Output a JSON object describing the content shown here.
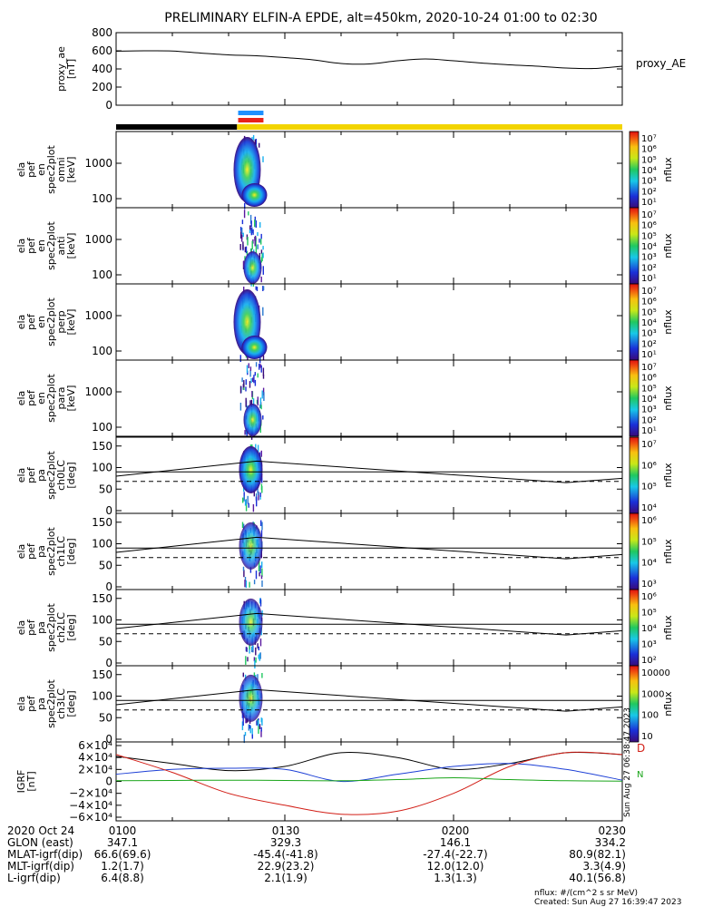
{
  "chart_data": {
    "type": "multi-panel time series and spectrogram stack",
    "title": "PRELIMINARY ELFIN-A EPDE, alt=450km, 2020-10-24 01:00 to 02:30",
    "time_axis": {
      "start": "2020-10-24 01:00",
      "end": "2020-10-24 02:30",
      "tick_labels": [
        "0100",
        "0130",
        "0200",
        "0230"
      ]
    },
    "proxy_ae": {
      "ylabel": [
        "proxy_ae",
        "[nT]"
      ],
      "series_label": "proxy_AE",
      "ylim": [
        0,
        800
      ],
      "yticks": [
        "0",
        "200",
        "400",
        "600",
        "800"
      ],
      "minutes": [
        0,
        5,
        10,
        15,
        20,
        25,
        30,
        35,
        40,
        45,
        50,
        55,
        60,
        65,
        70,
        75,
        80,
        85,
        90
      ],
      "values": [
        595,
        600,
        598,
        575,
        555,
        545,
        525,
        500,
        460,
        455,
        490,
        510,
        490,
        465,
        445,
        430,
        410,
        405,
        430
      ]
    },
    "status_bars": {
      "black_until_minute": 21.5,
      "yellow_from_minute": 21.5,
      "science_zone_minutes": [
        21.7,
        26.2
      ],
      "colors": {
        "black": "#000000",
        "yellow": "#f2d400",
        "blue": "#1e90ff",
        "red": "#e8231a"
      }
    },
    "energy_panels": [
      {
        "ylabel": [
          "ela",
          "pef",
          "en",
          "spec2plot",
          "omni",
          "[keV]"
        ],
        "yticks": [
          "100",
          "1000"
        ],
        "colorbar_ticks": [
          "10⁷",
          "10⁶",
          "10⁵",
          "10⁴",
          "10³",
          "10²",
          "10¹"
        ],
        "colorbar_label": "nflux"
      },
      {
        "ylabel": [
          "ela",
          "pef",
          "en",
          "spec2plot",
          "anti",
          "[keV]"
        ],
        "yticks": [
          "100",
          "1000"
        ],
        "colorbar_ticks": [
          "10⁷",
          "10⁶",
          "10⁵",
          "10⁴",
          "10³",
          "10²",
          "10¹"
        ],
        "colorbar_label": "nflux"
      },
      {
        "ylabel": [
          "ela",
          "pef",
          "en",
          "spec2plot",
          "perp",
          "[keV]"
        ],
        "yticks": [
          "100",
          "1000"
        ],
        "colorbar_ticks": [
          "10⁷",
          "10⁶",
          "10⁵",
          "10⁴",
          "10³",
          "10²",
          "10¹"
        ],
        "colorbar_label": "nflux"
      },
      {
        "ylabel": [
          "ela",
          "pef",
          "en",
          "spec2plot",
          "para",
          "[keV]"
        ],
        "yticks": [
          "100",
          "1000"
        ],
        "colorbar_ticks": [
          "10⁷",
          "10⁶",
          "10⁵",
          "10⁴",
          "10³",
          "10²",
          "10¹"
        ],
        "colorbar_label": "nflux"
      }
    ],
    "pitch_panels": [
      {
        "ylabel": [
          "ela",
          "pef",
          "pa",
          "spec2plot",
          "ch0LC",
          "[deg]"
        ],
        "yticks": [
          "0",
          "50",
          "100",
          "150"
        ],
        "colorbar_ticks": [
          "10⁷",
          "10⁶",
          "10⁵",
          "10⁴"
        ],
        "colorbar_label": "nflux"
      },
      {
        "ylabel": [
          "ela",
          "pef",
          "pa",
          "spec2plot",
          "ch1LC",
          "[deg]"
        ],
        "yticks": [
          "0",
          "50",
          "100",
          "150"
        ],
        "colorbar_ticks": [
          "10⁶",
          "10⁵",
          "10⁴",
          "10³"
        ],
        "colorbar_label": "nflux"
      },
      {
        "ylabel": [
          "ela",
          "pef",
          "pa",
          "spec2plot",
          "ch2LC",
          "[deg]"
        ],
        "yticks": [
          "0",
          "50",
          "100",
          "150"
        ],
        "colorbar_ticks": [
          "10⁶",
          "10⁵",
          "10⁴",
          "10³",
          "10²"
        ],
        "colorbar_label": "nflux"
      },
      {
        "ylabel": [
          "ela",
          "pef",
          "pa",
          "spec2plot",
          "ch3LC",
          "[deg]"
        ],
        "yticks": [
          "0",
          "50",
          "100",
          "150"
        ],
        "colorbar_ticks": [
          "10000",
          "1000",
          "100",
          "10"
        ],
        "colorbar_label": "nflux"
      }
    ],
    "loss_cone": {
      "upper_line_minutes": [
        0,
        25,
        80,
        90
      ],
      "upper_line_values": [
        80,
        115,
        65,
        75
      ],
      "horizontal_deg": 90,
      "dashed_deg": 68
    },
    "igrf": {
      "ylabel": [
        "IGRF",
        "[nT]"
      ],
      "ylim": [
        -60000,
        60000
      ],
      "yticks": [
        "6×10⁴",
        "4×10⁴",
        "2×10⁴",
        "0",
        "−2×10⁴",
        "−4×10⁴",
        "−6×10⁴"
      ],
      "series": [
        {
          "name": "black",
          "color": "#000000",
          "minutes": [
            0,
            10,
            20,
            30,
            40,
            50,
            60,
            70,
            80,
            90
          ],
          "values": [
            42000,
            30000,
            18000,
            25000,
            48000,
            40000,
            20000,
            30000,
            48000,
            45000
          ]
        },
        {
          "name": "blue",
          "color": "#1c3fd6",
          "minutes": [
            0,
            10,
            20,
            30,
            40,
            50,
            60,
            70,
            80,
            90
          ],
          "values": [
            12000,
            20000,
            22000,
            20000,
            0,
            12000,
            25000,
            30000,
            20000,
            2000
          ]
        },
        {
          "name": "red",
          "color": "#d21e16",
          "minutes": [
            0,
            10,
            20,
            30,
            40,
            50,
            60,
            70,
            80,
            90
          ],
          "values": [
            45000,
            15000,
            -20000,
            -40000,
            -55000,
            -50000,
            -20000,
            25000,
            48000,
            45000
          ]
        },
        {
          "name": "green",
          "color": "#1aa51a",
          "minutes": [
            0,
            10,
            20,
            30,
            40,
            50,
            60,
            70,
            80,
            90
          ],
          "values": [
            1000,
            1500,
            2000,
            1500,
            1000,
            3000,
            6000,
            3000,
            1000,
            500
          ]
        }
      ],
      "right_labels": [
        "D",
        "N"
      ]
    },
    "ephemeris": {
      "row_labels": [
        "2020 Oct 24",
        "GLON (east)",
        "MLAT-igrf(dip)",
        "MLT-igrf(dip)",
        "L-igrf(dip)"
      ],
      "columns": [
        {
          "time": "0100",
          "values": [
            "347.1",
            "66.6(69.6)",
            "1.2(1.7)",
            "6.4(8.8)"
          ]
        },
        {
          "time": "0130",
          "values": [
            "329.3",
            "-45.4(-41.8)",
            "22.9(23.2)",
            "2.1(1.9)"
          ]
        },
        {
          "time": "0200",
          "values": [
            "146.1",
            "-27.4(-22.7)",
            "12.0(12.0)",
            "1.3(1.3)"
          ]
        },
        {
          "time": "0230",
          "values": [
            "334.2",
            "80.9(82.1)",
            "3.3(4.9)",
            "40.1(56.8)"
          ]
        }
      ]
    },
    "footer": {
      "units": "nflux: #/(cm^2 s sr MeV)",
      "created": "Created: Sun Aug 27 16:39:47 2023",
      "side_stamp": "Sun Aug 27 06:38:47 2023"
    }
  }
}
